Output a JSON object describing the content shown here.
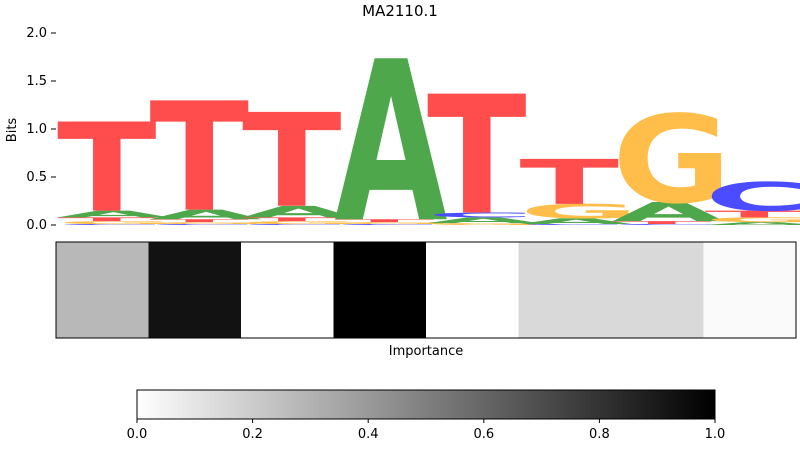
{
  "chart_data": {
    "type": "sequence-logo",
    "title": "MA2110.1",
    "ylabel": "Bits",
    "ylim": [
      0,
      2.0
    ],
    "yticks": [
      "0.0",
      "0.5",
      "1.0",
      "1.5",
      "2.0"
    ],
    "letter_colors": {
      "A": "#4ea74b",
      "C": "#4b4bff",
      "G": "#ffbd49",
      "T": "#ff4c4c"
    },
    "positions": [
      {
        "stack": [
          [
            "C",
            0.01
          ],
          [
            "G",
            0.03
          ],
          [
            "T",
            0.04
          ],
          [
            "A",
            0.07
          ],
          [
            "T",
            0.0
          ]
        ],
        "top": [
          "T",
          0.93
        ]
      },
      {
        "stack": [
          [
            "C",
            0.01
          ],
          [
            "G",
            0.02
          ],
          [
            "T",
            0.03
          ],
          [
            "A",
            0.1
          ]
        ],
        "top": [
          "T",
          1.14
        ]
      },
      {
        "stack": [
          [
            "C",
            0.01
          ],
          [
            "G",
            0.03
          ],
          [
            "T",
            0.04
          ],
          [
            "A",
            0.12
          ]
        ],
        "top": [
          "T",
          0.98
        ]
      },
      {
        "stack": [
          [
            "C",
            0.01
          ],
          [
            "G",
            0.02
          ],
          [
            "T",
            0.03
          ]
        ],
        "top": [
          "A",
          1.68
        ]
      },
      {
        "stack": [
          [
            "G",
            0.02
          ],
          [
            "A",
            0.06
          ],
          [
            "C",
            0.05
          ]
        ],
        "top": [
          "T",
          1.24
        ]
      },
      {
        "stack": [
          [
            "C",
            0.01
          ],
          [
            "A",
            0.06
          ],
          [
            "G",
            0.15
          ]
        ],
        "top": [
          "T",
          0.47
        ]
      },
      {
        "stack": [
          [
            "C",
            0.01
          ],
          [
            "T",
            0.03
          ],
          [
            "A",
            0.2
          ]
        ],
        "top": [
          "G",
          0.92
        ]
      },
      {
        "stack": [
          [
            "A",
            0.03
          ],
          [
            "G",
            0.05
          ],
          [
            "T",
            0.07
          ]
        ],
        "top": [
          "C",
          0.3
        ]
      }
    ],
    "importance": {
      "label": "Importance",
      "values": [
        0.28,
        0.93,
        0.0,
        1.0,
        0.0,
        0.15,
        0.15,
        0.02
      ]
    },
    "colorbar": {
      "range": [
        0,
        1
      ],
      "ticks": [
        "0.0",
        "0.2",
        "0.4",
        "0.6",
        "0.8",
        "1.0"
      ]
    }
  }
}
